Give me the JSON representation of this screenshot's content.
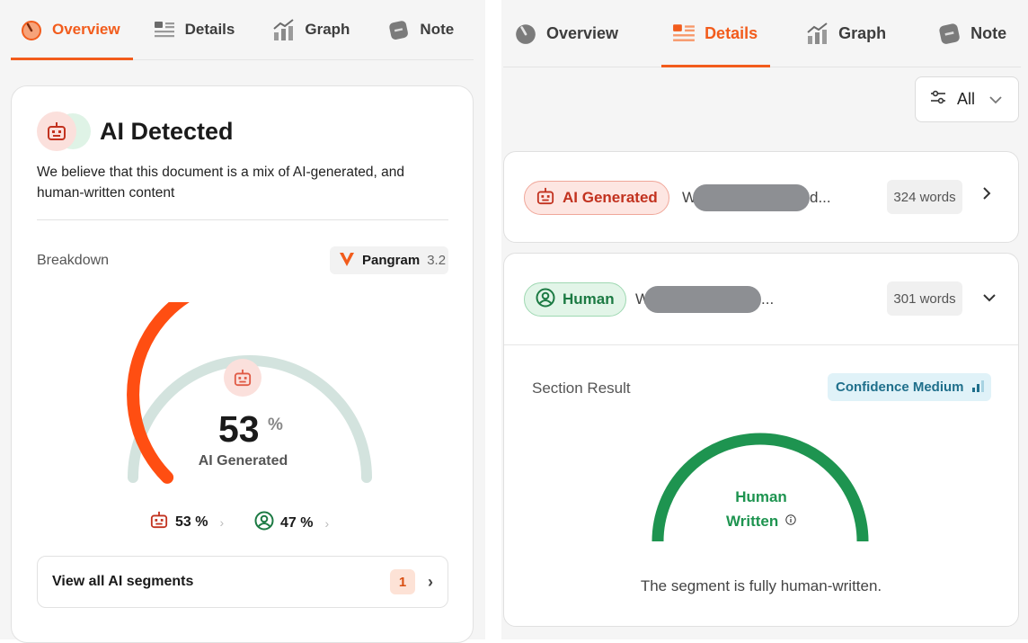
{
  "left": {
    "tabs": [
      {
        "label": "Overview",
        "icon": "gauge-icon",
        "active": true
      },
      {
        "label": "Details",
        "icon": "list-icon",
        "active": false
      },
      {
        "label": "Graph",
        "icon": "chart-icon",
        "active": false
      },
      {
        "label": "Note",
        "icon": "note-icon",
        "active": false
      }
    ],
    "title": "AI Detected",
    "description": "We believe that this document is a mix of AI-generated, and human-written content",
    "breakdown_label": "Breakdown",
    "model": {
      "name": "Pangram",
      "version": "3.2"
    },
    "gauge": {
      "percent": "53",
      "percent_sign": "%",
      "label": "AI Generated",
      "ai_fraction": 0.53
    },
    "ai_share": "53 %",
    "human_share": "47 %",
    "view_button": {
      "label": "View all AI segments",
      "count": "1"
    }
  },
  "right": {
    "tabs": [
      {
        "label": "Overview",
        "icon": "gauge-icon",
        "active": false
      },
      {
        "label": "Details",
        "icon": "list-icon",
        "active": true
      },
      {
        "label": "Graph",
        "icon": "chart-icon",
        "active": false
      },
      {
        "label": "Note",
        "icon": "note-icon",
        "active": false
      }
    ],
    "filter": {
      "label": "All"
    },
    "segments": [
      {
        "tag": "AI Generated",
        "preview_start": "W",
        "preview_end": "d...",
        "words": "324 words",
        "expanded": false
      },
      {
        "tag": "Human",
        "preview_start": "W",
        "preview_end": "...",
        "words": "301 words",
        "expanded": true
      }
    ],
    "section": {
      "label": "Section Result",
      "confidence": "Confidence Medium",
      "result_line1": "Human",
      "result_line2": "Written",
      "summary": "The segment is fully human-written."
    }
  },
  "colors": {
    "accent": "#f25c1c",
    "ai_red": "#c2321f",
    "human_green": "#1e9450",
    "track": "#d3e3de"
  }
}
